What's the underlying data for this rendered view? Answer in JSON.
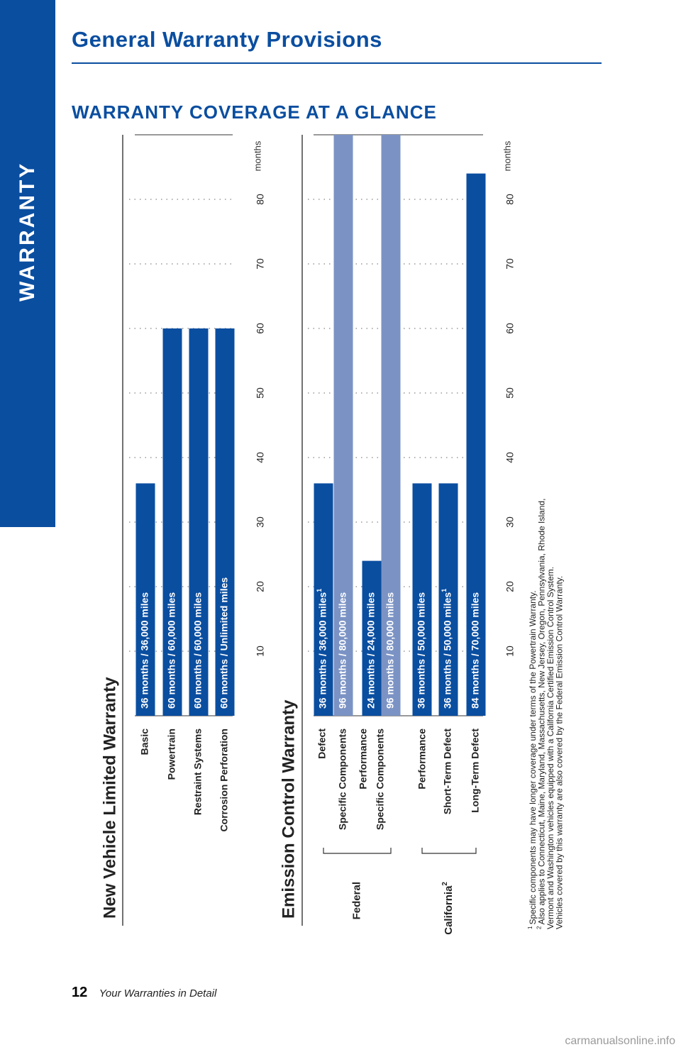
{
  "side_tab": {
    "label": "WARRANTY"
  },
  "header": {
    "title": "General Warranty Provisions"
  },
  "subtitle": "WARRANTY COVERAGE AT A GLANCE",
  "chart_data": {
    "type": "bar",
    "orientation": "rotated",
    "unit_label": "months",
    "ticks": [
      10,
      20,
      30,
      40,
      50,
      60,
      70,
      80
    ],
    "xlim": [
      0,
      90
    ],
    "grid": true,
    "colors": {
      "primary": "#0a4ea0",
      "secondary": "#7b93c4"
    },
    "sections": [
      {
        "title": "New Vehicle Limited Warranty",
        "bars": [
          {
            "category": "Basic",
            "label": "36 months  /  36,000 miles",
            "months": 36,
            "color": "primary"
          },
          {
            "category": "Powertrain",
            "label": "60 months  /  60,000 miles",
            "months": 60,
            "color": "primary"
          },
          {
            "category": "Restraint Systems",
            "label": "60 months  /  60,000 miles",
            "months": 60,
            "color": "primary"
          },
          {
            "category": "Corrosion Perforation",
            "label": "60 months  /  Unlimited miles",
            "months": 60,
            "color": "primary"
          }
        ]
      },
      {
        "title": "Emission Control Warranty",
        "groups": [
          {
            "name": "Federal",
            "sup": "",
            "span": [
              0,
              3
            ]
          },
          {
            "name": "California",
            "sup": "2",
            "span": [
              4,
              6
            ]
          }
        ],
        "bars": [
          {
            "category": "Defect",
            "label": "36 months  /  36,000 miles",
            "sup": "1",
            "months": 36,
            "color": "primary"
          },
          {
            "category": "Specific Components",
            "label": "96 months  /  80,000 miles",
            "months": 96,
            "color": "secondary"
          },
          {
            "category": "Performance",
            "label": "24 months  /  24,000 miles",
            "months": 24,
            "color": "primary"
          },
          {
            "category": "Specific Components",
            "label": "96 months  /  80,000 miles",
            "months": 96,
            "color": "secondary"
          },
          {
            "category": "Performance",
            "label": "36 months  /  50,000 miles",
            "months": 36,
            "color": "primary"
          },
          {
            "category": "Short-Term Defect",
            "label": "36 months  /  50,000 miles",
            "sup": "1",
            "months": 36,
            "color": "primary"
          },
          {
            "category": "Long-Term Defect",
            "label": "84 months  /  70,000 miles",
            "months": 84,
            "color": "primary"
          }
        ]
      }
    ],
    "footnotes": [
      {
        "mark": "1",
        "lines": [
          "Specific components may have longer coverage under terms of the Powertrain Warranty."
        ]
      },
      {
        "mark": "2",
        "lines": [
          "Also applies to Connecticut, Maine, Maryland, Massachusetts, New Jersey, Oregon, Pennsylvania, Rhode Island,",
          "Vermont and Washington vehicles equipped with a California Certified Emission Control System.",
          "Vehicles covered by this warranty are also covered by the Federal Emission Control Warranty."
        ]
      }
    ]
  },
  "footer": {
    "page_number": "12",
    "text": "Your Warranties in Detail"
  },
  "watermark": "carmanualsonline.info"
}
